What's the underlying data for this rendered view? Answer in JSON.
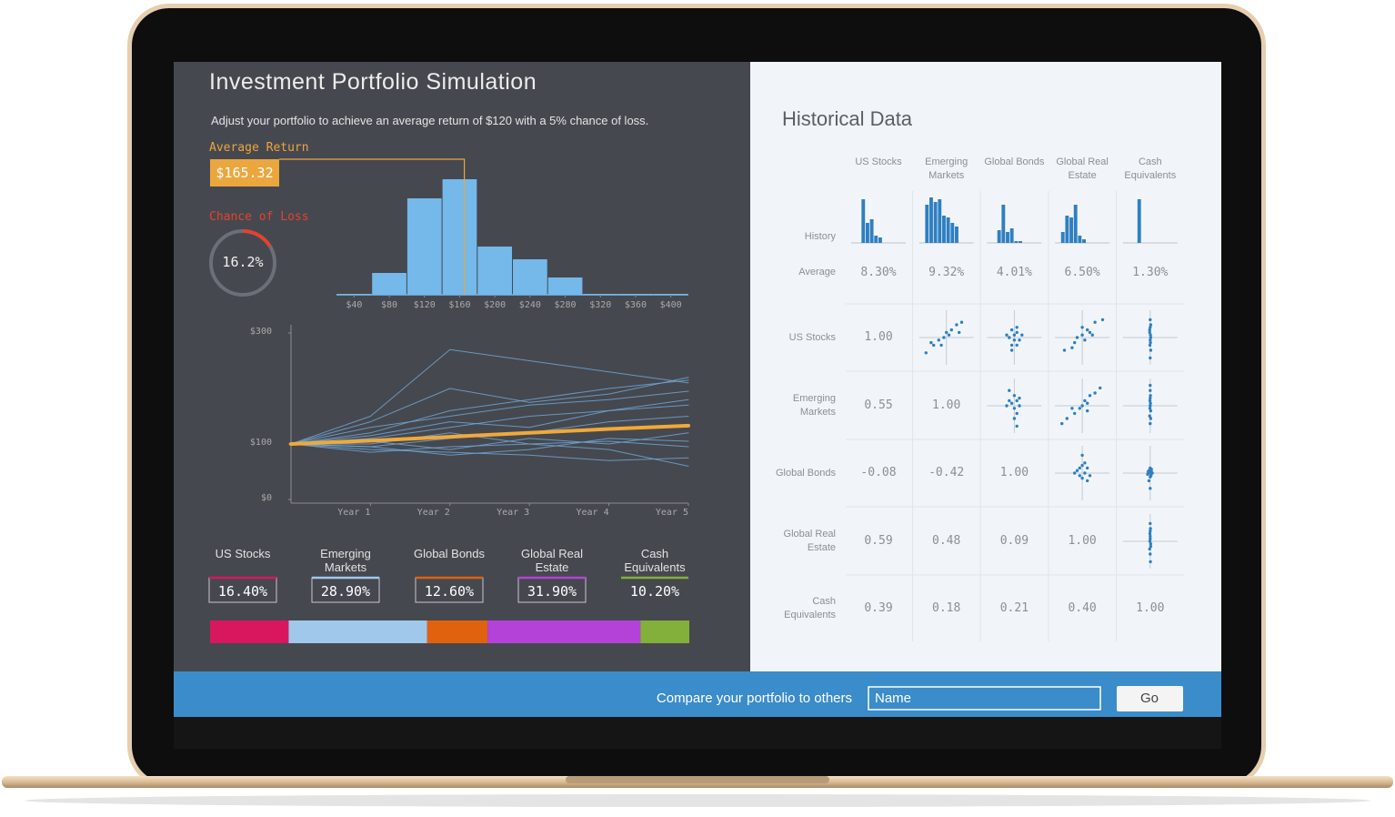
{
  "header": {
    "title": "Investment Portfolio Simulation",
    "instruction": "Adjust your portfolio to achieve an average return of $120 with a 5% chance of loss."
  },
  "average_return": {
    "label": "Average Return",
    "value": 165.32,
    "value_label": "$165.32",
    "color": "#eba63e"
  },
  "chance_of_loss": {
    "label": "Chance of Loss",
    "value": 16.2,
    "value_label": "16.2%",
    "color": "#e5412f"
  },
  "return_histogram": {
    "type": "histogram",
    "color": "#74b9ea",
    "bins": [
      20,
      60,
      100,
      140,
      180,
      220,
      260,
      300,
      340,
      380,
      420
    ],
    "values": [
      1,
      24,
      106,
      127,
      53,
      39,
      19,
      1,
      1,
      1
    ],
    "xlim": [
      20,
      420
    ],
    "ylim": [
      0,
      130
    ],
    "xticks": [
      {
        "value": 40,
        "label": "$40"
      },
      {
        "value": 80,
        "label": "$80"
      },
      {
        "value": 120,
        "label": "$120"
      },
      {
        "value": 160,
        "label": "$160"
      },
      {
        "value": 200,
        "label": "$200"
      },
      {
        "value": 240,
        "label": "$240"
      },
      {
        "value": 280,
        "label": "$280"
      },
      {
        "value": 320,
        "label": "$320"
      },
      {
        "value": 360,
        "label": "$360"
      },
      {
        "value": 400,
        "label": "$400"
      }
    ]
  },
  "simulation": {
    "type": "line",
    "x": [
      0,
      1,
      2,
      3,
      4,
      5
    ],
    "xlim": [
      0,
      5
    ],
    "ylim": [
      0,
      300
    ],
    "xticks": [
      {
        "value": 1,
        "label": "Year 1"
      },
      {
        "value": 2,
        "label": "Year 2"
      },
      {
        "value": 3,
        "label": "Year 3"
      },
      {
        "value": 4,
        "label": "Year 4"
      },
      {
        "value": 5,
        "label": "Year 5"
      }
    ],
    "yticks": [
      {
        "value": 0,
        "label": "$0"
      },
      {
        "value": 100,
        "label": "$100"
      },
      {
        "value": 300,
        "label": "$300"
      }
    ],
    "series": [
      {
        "color": "#6fa6d2",
        "values": [
          100,
          140,
          200,
          175,
          190,
          220
        ]
      },
      {
        "color": "#6fa6d2",
        "values": [
          100,
          150,
          270,
          250,
          230,
          210
        ]
      },
      {
        "color": "#6fa6d2",
        "values": [
          100,
          120,
          160,
          180,
          200,
          215
        ]
      },
      {
        "color": "#6fa6d2",
        "values": [
          100,
          110,
          130,
          150,
          160,
          180
        ]
      },
      {
        "color": "#6fa6d2",
        "values": [
          100,
          95,
          110,
          120,
          140,
          150
        ]
      },
      {
        "color": "#6fa6d2",
        "values": [
          100,
          105,
          90,
          110,
          100,
          120
        ]
      },
      {
        "color": "#6fa6d2",
        "values": [
          100,
          90,
          85,
          80,
          70,
          75
        ]
      },
      {
        "color": "#6fa6d2",
        "values": [
          100,
          100,
          120,
          100,
          90,
          60
        ]
      },
      {
        "color": "#6fa6d2",
        "values": [
          100,
          115,
          140,
          130,
          160,
          170
        ]
      },
      {
        "color": "#6fa6d2",
        "values": [
          100,
          85,
          95,
          100,
          105,
          95
        ]
      },
      {
        "color": "#6fa6d2",
        "values": [
          100,
          130,
          150,
          170,
          180,
          195
        ]
      },
      {
        "color": "#6fa6d2",
        "values": [
          100,
          95,
          80,
          90,
          110,
          105
        ]
      }
    ],
    "average": {
      "color": "#f0a93a",
      "values": [
        100,
        106,
        113,
        120,
        127,
        133
      ]
    }
  },
  "allocation": {
    "assets": [
      {
        "name": "US Stocks",
        "value": 16.4,
        "value_label": "16.40%",
        "color": "#d8175f"
      },
      {
        "name": "Emerging Markets",
        "value": 28.9,
        "value_label": "28.90%",
        "color": "#9fc8ea"
      },
      {
        "name": "Global Bonds",
        "value": 12.6,
        "value_label": "12.60%",
        "color": "#e0620f"
      },
      {
        "name": "Global Real Estate",
        "value": 31.9,
        "value_label": "31.90%",
        "color": "#b442d9"
      },
      {
        "name": "Cash Equivalents",
        "value": 10.2,
        "value_label": "10.20%",
        "color": "#82b03a"
      }
    ]
  },
  "historical": {
    "title": "Historical Data",
    "history_label": "History",
    "average_label": "Average",
    "assets": [
      "US Stocks",
      "Emerging Markets",
      "Global Bonds",
      "Global Real Estate",
      "Cash Equivalents"
    ],
    "mark_color": "#2f7fc1",
    "history_ylim": [
      0,
      50
    ],
    "history": [
      [
        0,
        0,
        48,
        22,
        26,
        8,
        6,
        0,
        0,
        0,
        0,
        0
      ],
      [
        0,
        42,
        50,
        45,
        48,
        30,
        28,
        22,
        18,
        0,
        0,
        0
      ],
      [
        0,
        0,
        14,
        42,
        12,
        16,
        2,
        2,
        0,
        0,
        0,
        0
      ],
      [
        0,
        12,
        30,
        28,
        42,
        8,
        4,
        0,
        0,
        0,
        0,
        0
      ],
      [
        0,
        0,
        0,
        48,
        0,
        0,
        0,
        0,
        0,
        0,
        0,
        0
      ]
    ],
    "average": {
      "values": [
        8.3,
        9.32,
        4.01,
        6.5,
        1.3
      ],
      "value_labels": [
        "8.30%",
        "9.32%",
        "4.01%",
        "6.50%",
        "1.30%"
      ]
    },
    "correlation": [
      {
        "values": [
          1
        ],
        "value_labels": [
          "1.00"
        ],
        "scatter": [
          [
            [
              -0.8,
              -0.6
            ],
            [
              -0.5,
              -0.3
            ],
            [
              -0.3,
              -0.1
            ],
            [
              -0.1,
              0
            ],
            [
              0,
              0.2
            ],
            [
              0.1,
              0.1
            ],
            [
              0.2,
              0.3
            ],
            [
              0.4,
              0.5
            ],
            [
              0.6,
              0.6
            ],
            [
              -0.2,
              -0.3
            ],
            [
              0.5,
              0.2
            ],
            [
              -0.6,
              -0.2
            ]
          ],
          [
            [
              -0.1,
              -0.3
            ],
            [
              0.1,
              0.2
            ],
            [
              0,
              0.1
            ],
            [
              -0.2,
              0
            ],
            [
              0.2,
              -0.1
            ],
            [
              0.1,
              -0.3
            ],
            [
              -0.1,
              0.3
            ],
            [
              0,
              -0.1
            ],
            [
              0.3,
              0.1
            ],
            [
              -0.3,
              0.1
            ],
            [
              0.1,
              0.4
            ],
            [
              -0.1,
              -0.5
            ]
          ],
          [
            [
              -0.7,
              -0.5
            ],
            [
              -0.4,
              -0.4
            ],
            [
              -0.2,
              0
            ],
            [
              0,
              0.1
            ],
            [
              0.1,
              -0.1
            ],
            [
              0.2,
              0.3
            ],
            [
              0.3,
              0.2
            ],
            [
              0.5,
              0.6
            ],
            [
              0.8,
              0.7
            ],
            [
              -0.3,
              -0.2
            ],
            [
              0.4,
              0.1
            ],
            [
              0,
              0.4
            ]
          ],
          [
            [
              0,
              0.7
            ],
            [
              0.02,
              0.5
            ],
            [
              -0.02,
              0.3
            ],
            [
              0.01,
              0.1
            ],
            [
              0,
              -0.1
            ],
            [
              -0.01,
              -0.3
            ],
            [
              0.02,
              -0.5
            ],
            [
              0,
              -0.8
            ],
            [
              -0.02,
              0.2
            ],
            [
              0.01,
              -0.2
            ],
            [
              0,
              0.4
            ],
            [
              0.02,
              0
            ]
          ]
        ]
      },
      {
        "values": [
          0.55,
          1
        ],
        "value_labels": [
          "0.55",
          "1.00"
        ],
        "scatter": [
          [
            [
              -0.2,
              0.6
            ],
            [
              0,
              0.4
            ],
            [
              0.1,
              0.2
            ],
            [
              -0.1,
              0.1
            ],
            [
              0.2,
              0
            ],
            [
              0,
              -0.1
            ],
            [
              -0.2,
              0.2
            ],
            [
              0.1,
              -0.3
            ],
            [
              0,
              -0.5
            ],
            [
              0.1,
              -0.8
            ],
            [
              -0.3,
              0
            ],
            [
              0.2,
              0.3
            ]
          ],
          [
            [
              -0.8,
              -0.7
            ],
            [
              -0.6,
              -0.5
            ],
            [
              -0.3,
              -0.3
            ],
            [
              -0.1,
              -0.1
            ],
            [
              0,
              0
            ],
            [
              0.1,
              0.2
            ],
            [
              0.2,
              0.1
            ],
            [
              0.3,
              0.4
            ],
            [
              0.5,
              0.5
            ],
            [
              0.7,
              0.7
            ],
            [
              -0.4,
              -0.1
            ],
            [
              0.2,
              -0.2
            ]
          ],
          [
            [
              0,
              0.6
            ],
            [
              0.01,
              0.4
            ],
            [
              -0.01,
              0.2
            ],
            [
              0,
              0
            ],
            [
              0.02,
              -0.2
            ],
            [
              -0.02,
              -0.4
            ],
            [
              0,
              -0.7
            ],
            [
              0.01,
              0.1
            ],
            [
              -0.01,
              -0.1
            ],
            [
              0,
              0.3
            ],
            [
              0.02,
              -0.5
            ],
            [
              0,
              0.8
            ]
          ]
        ]
      },
      {
        "values": [
          -0.08,
          -0.42,
          1
        ],
        "value_labels": [
          "-0.08",
          "-0.42",
          "1.00"
        ],
        "scatter": [
          [
            [
              -0.2,
              0.1
            ],
            [
              0,
              0.3
            ],
            [
              0.1,
              0
            ],
            [
              -0.1,
              -0.1
            ],
            [
              0.2,
              0.2
            ],
            [
              0,
              -0.2
            ],
            [
              -0.3,
              0
            ],
            [
              0.1,
              0.4
            ],
            [
              0.3,
              -0.1
            ],
            [
              -0.1,
              0.2
            ],
            [
              0,
              0.7
            ],
            [
              0.2,
              -0.3
            ]
          ],
          [
            [
              -0.05,
              0.1
            ],
            [
              0,
              0
            ],
            [
              0.05,
              0.05
            ],
            [
              -0.1,
              -0.05
            ],
            [
              0,
              -0.15
            ],
            [
              0.05,
              0.15
            ],
            [
              -0.05,
              -0.3
            ],
            [
              0,
              -0.6
            ],
            [
              0.08,
              0
            ],
            [
              -0.08,
              0.05
            ],
            [
              0,
              0.2
            ],
            [
              0.03,
              -0.1
            ]
          ]
        ]
      },
      {
        "values": [
          0.59,
          0.48,
          0.09,
          1
        ],
        "value_labels": [
          "0.59",
          "0.48",
          "0.09",
          "1.00"
        ],
        "scatter": [
          [
            [
              0,
              0.7
            ],
            [
              0.01,
              0.5
            ],
            [
              -0.01,
              0.3
            ],
            [
              0,
              0.1
            ],
            [
              0.02,
              -0.1
            ],
            [
              -0.02,
              -0.3
            ],
            [
              0,
              -0.5
            ],
            [
              0.01,
              -0.8
            ],
            [
              -0.01,
              0
            ],
            [
              0,
              0.2
            ],
            [
              0.02,
              -0.2
            ],
            [
              0,
              0.4
            ]
          ]
        ]
      },
      {
        "values": [
          0.39,
          0.18,
          0.21,
          0.4,
          1
        ],
        "value_labels": [
          "0.39",
          "0.18",
          "0.21",
          "0.40",
          "1.00"
        ],
        "scatter": []
      }
    ]
  },
  "footer": {
    "prompt": "Compare your portfolio to others",
    "input_placeholder": "Name",
    "button": "Go"
  }
}
